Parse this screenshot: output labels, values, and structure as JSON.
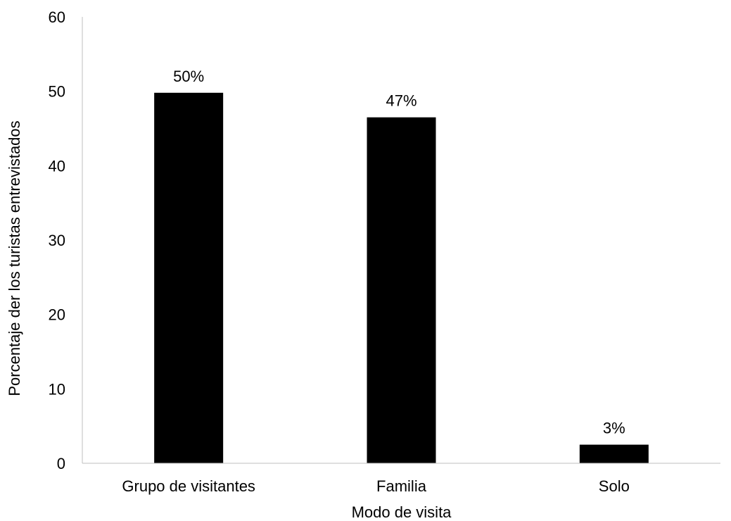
{
  "chart_data": {
    "type": "bar",
    "categories": [
      "Grupo de visitantes",
      "Familia",
      "Solo"
    ],
    "values": [
      49.8,
      46.5,
      2.5
    ],
    "data_labels": [
      "50%",
      "47%",
      "3%"
    ],
    "title": "",
    "xlabel": "Modo de visita",
    "ylabel": "Porcentaje der los turistas entrevistados",
    "ylim": [
      0,
      60
    ],
    "yticks": [
      0,
      10,
      20,
      30,
      40,
      50,
      60
    ],
    "grid": false,
    "bar_color": "#000000",
    "axis_color": "#bfbfbf"
  }
}
